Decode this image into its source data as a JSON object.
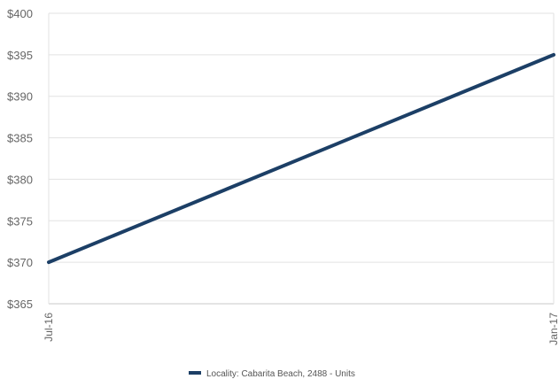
{
  "chart_data": {
    "type": "line",
    "x": [
      "Jul-16",
      "Jan-17"
    ],
    "series": [
      {
        "name": "Locality: Cabarita Beach, 2488 - Units",
        "values": [
          370,
          395
        ],
        "color": "#1c3f66"
      }
    ],
    "ylim": [
      365,
      400
    ],
    "yticks": [
      365,
      370,
      375,
      380,
      385,
      390,
      395,
      400
    ],
    "ytick_prefix": "$",
    "grid": true,
    "legend_position": "bottom-center"
  }
}
